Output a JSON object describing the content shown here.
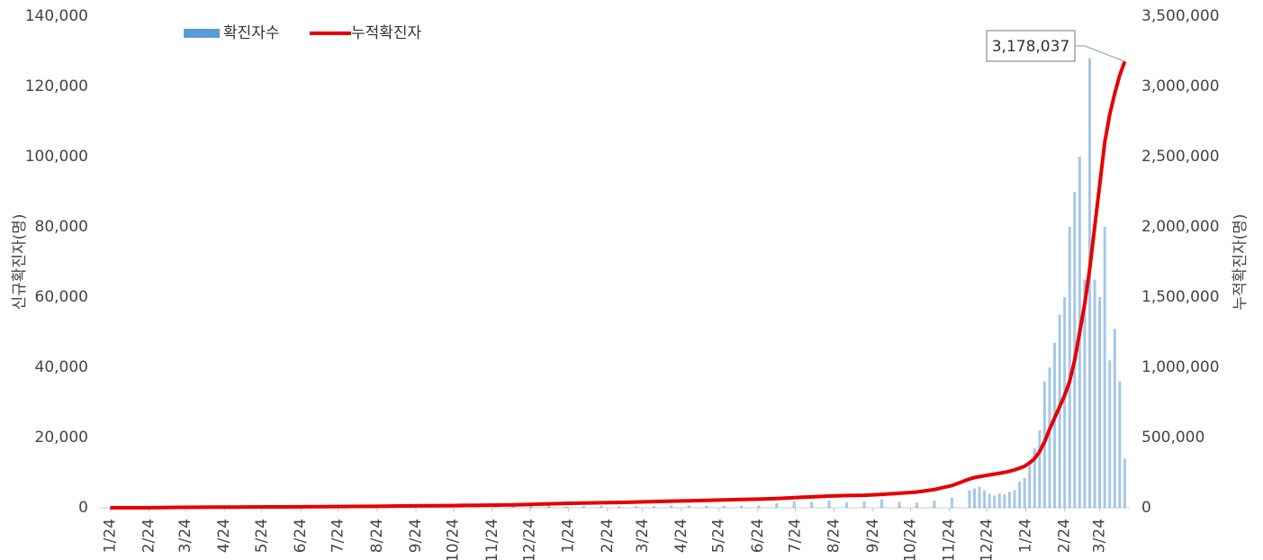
{
  "chart_data": {
    "type": "bar_line",
    "y_label": "신규확진자(명)",
    "y2_label": "누적확진자(명)",
    "legend": "top-left",
    "x": [
      0,
      14,
      28,
      42,
      56,
      70,
      84,
      98,
      112,
      126,
      140,
      154,
      168,
      182,
      196,
      210,
      224,
      238,
      252,
      266,
      280,
      294,
      308,
      322,
      336,
      350,
      364,
      378,
      392,
      406,
      420,
      434,
      448,
      462,
      476,
      490,
      504,
      518,
      532,
      546,
      560,
      574,
      588,
      602,
      616,
      630,
      644,
      658,
      672,
      686,
      690,
      694,
      698,
      702,
      706,
      710,
      714,
      718,
      722,
      726,
      730,
      734,
      738,
      742,
      746,
      750,
      754,
      758,
      762,
      766,
      770,
      774,
      778,
      782,
      786,
      790,
      794,
      798,
      802,
      806,
      810
    ],
    "xlim": [
      -9,
      814
    ],
    "xticks": [
      {
        "value": 0,
        "label": "1/24"
      },
      {
        "value": 31,
        "label": "2/24"
      },
      {
        "value": 60,
        "label": "3/24"
      },
      {
        "value": 91,
        "label": "4/24"
      },
      {
        "value": 121,
        "label": "5/24"
      },
      {
        "value": 152,
        "label": "6/24"
      },
      {
        "value": 182,
        "label": "7/24"
      },
      {
        "value": 213,
        "label": "8/24"
      },
      {
        "value": 244,
        "label": "9/24"
      },
      {
        "value": 274,
        "label": "10/24"
      },
      {
        "value": 305,
        "label": "11/24"
      },
      {
        "value": 335,
        "label": "12/24"
      },
      {
        "value": 366,
        "label": "1/24"
      },
      {
        "value": 397,
        "label": "2/24"
      },
      {
        "value": 425,
        "label": "3/24"
      },
      {
        "value": 456,
        "label": "4/24"
      },
      {
        "value": 486,
        "label": "5/24"
      },
      {
        "value": 517,
        "label": "6/24"
      },
      {
        "value": 547,
        "label": "7/24"
      },
      {
        "value": 578,
        "label": "8/24"
      },
      {
        "value": 609,
        "label": "9/24"
      },
      {
        "value": 639,
        "label": "10/24"
      },
      {
        "value": 670,
        "label": "11/24"
      },
      {
        "value": 700,
        "label": "12/24"
      },
      {
        "value": 731,
        "label": "1/24"
      },
      {
        "value": 762,
        "label": "2/24"
      },
      {
        "value": 790,
        "label": "3/24"
      }
    ],
    "ylim": [
      0,
      140000
    ],
    "yticks": [
      0,
      {
        "value": 20000,
        "label": "20,000"
      },
      {
        "value": 40000,
        "label": "40,000"
      },
      {
        "value": 60000,
        "label": "60,000"
      },
      {
        "value": 80000,
        "label": "80,000"
      },
      {
        "value": 100000,
        "label": "100,000"
      },
      {
        "value": 120000,
        "label": "120,000"
      },
      {
        "value": 140000,
        "label": "140,000"
      }
    ],
    "y2lim": [
      0,
      3500000
    ],
    "y2ticks": [
      0,
      {
        "value": 500000,
        "label": "500,000"
      },
      {
        "value": 1000000,
        "label": "1,000,000"
      },
      {
        "value": 1500000,
        "label": "1,500,000"
      },
      {
        "value": 2000000,
        "label": "2,000,000"
      },
      {
        "value": 2500000,
        "label": "2,500,000"
      },
      {
        "value": 3000000,
        "label": "3,000,000"
      },
      {
        "value": 3500000,
        "label": "3,500,000"
      }
    ],
    "series": [
      {
        "name": "확진자수",
        "type": "bar",
        "color": "#5b9bd5",
        "values": [
          1,
          0,
          100,
          480,
          90,
          50,
          20,
          10,
          20,
          50,
          40,
          50,
          60,
          40,
          50,
          280,
          200,
          120,
          60,
          70,
          110,
          120,
          300,
          500,
          1000,
          640,
          400,
          450,
          600,
          400,
          450,
          500,
          650,
          700,
          600,
          500,
          600,
          600,
          1300,
          1800,
          1700,
          2100,
          1600,
          1800,
          2400,
          1700,
          1500,
          2000,
          2900,
          5000,
          5500,
          6000,
          5000,
          4000,
          3500,
          4000,
          3800,
          4500,
          5000,
          7500,
          8500,
          13000,
          17000,
          22000,
          36000,
          40000,
          47000,
          55000,
          60000,
          80000,
          90000,
          100000,
          65000,
          128000,
          65000,
          60000,
          80000,
          42000,
          51000,
          36000,
          14000
        ]
      },
      {
        "name": "누적확진자",
        "type": "line",
        "axis": "y2",
        "color": "#e60000",
        "values": [
          1,
          30,
          300,
          2000,
          3500,
          4200,
          4700,
          5200,
          5600,
          6200,
          6800,
          7400,
          8000,
          8600,
          9200,
          10800,
          12200,
          13800,
          14800,
          15500,
          16500,
          17500,
          19000,
          21000,
          24000,
          28000,
          31000,
          34000,
          36000,
          38000,
          41000,
          44000,
          47000,
          50000,
          53000,
          56000,
          59000,
          62000,
          66000,
          72000,
          78000,
          83000,
          87000,
          89000,
          95000,
          103000,
          112000,
          130000,
          158000,
          205000,
          215000,
          222000,
          228000,
          234000,
          240000,
          246000,
          252000,
          260000,
          270000,
          282000,
          296000,
          320000,
          350000,
          400000,
          470000,
          560000,
          640000,
          720000,
          800000,
          900000,
          1050000,
          1250000,
          1450000,
          1700000,
          2000000,
          2300000,
          2600000,
          2800000,
          2950000,
          3080000,
          3178037
        ],
        "value_labels": [
          null,
          null,
          null,
          null,
          null,
          null,
          null,
          null,
          null,
          null,
          null,
          null,
          null,
          null,
          null,
          null,
          null,
          null,
          null,
          null,
          null,
          null,
          null,
          null,
          null,
          null,
          null,
          null,
          null,
          null,
          null,
          null,
          null,
          null,
          null,
          null,
          null,
          null,
          null,
          null,
          null,
          null,
          null,
          null,
          null,
          null,
          null,
          null,
          null,
          null,
          null,
          null,
          null,
          null,
          null,
          null,
          null,
          null,
          null,
          null,
          null,
          null,
          null,
          null,
          null,
          null,
          null,
          null,
          null,
          null,
          null,
          null,
          null,
          null,
          null,
          null,
          null,
          null,
          null,
          null,
          "3,178,037"
        ]
      }
    ]
  }
}
